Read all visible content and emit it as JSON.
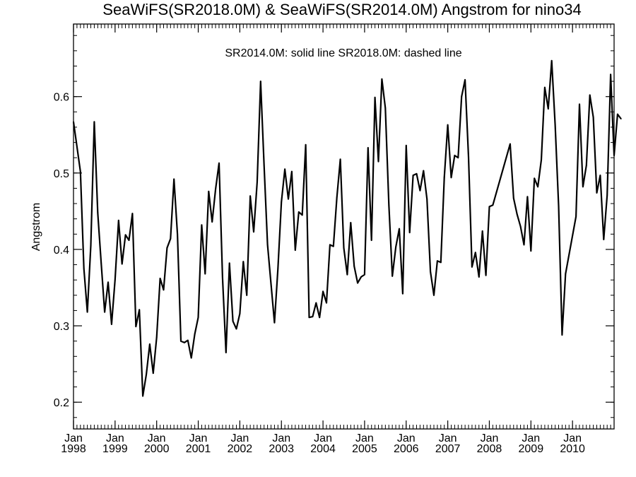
{
  "chart_data": {
    "type": "line",
    "title": "SeaWiFS(SR2018.0M) & SeaWiFS(SR2014.0M)  Angstrom for nino34",
    "annotation": "SR2014.0M: solid line   SR2018.0M: dashed line",
    "ylabel": "Angstrom",
    "xlabel": "",
    "xlim": [
      "1998-01",
      "2011-01"
    ],
    "ylim": [
      0.165,
      0.695
    ],
    "yticks": [
      {
        "value": 0.2,
        "label": "0.2"
      },
      {
        "value": 0.3,
        "label": "0.3"
      },
      {
        "value": 0.4,
        "label": "0.4"
      },
      {
        "value": 0.5,
        "label": "0.5"
      },
      {
        "value": 0.6,
        "label": "0.6"
      }
    ],
    "xticks": [
      {
        "date": "1998-01",
        "month": "Jan",
        "year": "1998"
      },
      {
        "date": "1999-01",
        "month": "Jan",
        "year": "1999"
      },
      {
        "date": "2000-01",
        "month": "Jan",
        "year": "2000"
      },
      {
        "date": "2001-01",
        "month": "Jan",
        "year": "2001"
      },
      {
        "date": "2002-01",
        "month": "Jan",
        "year": "2002"
      },
      {
        "date": "2003-01",
        "month": "Jan",
        "year": "2003"
      },
      {
        "date": "2004-01",
        "month": "Jan",
        "year": "2004"
      },
      {
        "date": "2005-01",
        "month": "Jan",
        "year": "2005"
      },
      {
        "date": "2006-01",
        "month": "Jan",
        "year": "2006"
      },
      {
        "date": "2007-01",
        "month": "Jan",
        "year": "2007"
      },
      {
        "date": "2008-01",
        "month": "Jan",
        "year": "2008"
      },
      {
        "date": "2009-01",
        "month": "Jan",
        "year": "2009"
      },
      {
        "date": "2010-01",
        "month": "Jan",
        "year": "2010"
      }
    ],
    "grid": false,
    "series": [
      {
        "line_style": "solid",
        "color": "#000000",
        "points": [
          [
            "1998-01",
            0.567
          ],
          [
            "1998-03",
            0.502
          ],
          [
            "1998-04",
            0.375
          ],
          [
            "1998-05",
            0.318
          ],
          [
            "1998-06",
            0.405
          ],
          [
            "1998-07",
            0.567
          ],
          [
            "1998-08",
            0.448
          ],
          [
            "1998-09",
            0.382
          ],
          [
            "1998-10",
            0.318
          ],
          [
            "1998-11",
            0.357
          ],
          [
            "1998-12",
            0.302
          ],
          [
            "1999-01",
            0.36
          ],
          [
            "1999-02",
            0.438
          ],
          [
            "1999-03",
            0.381
          ],
          [
            "1999-04",
            0.419
          ],
          [
            "1999-05",
            0.412
          ],
          [
            "1999-06",
            0.447
          ],
          [
            "1999-07",
            0.299
          ],
          [
            "1999-08",
            0.321
          ],
          [
            "1999-09",
            0.208
          ],
          [
            "1999-10",
            0.236
          ],
          [
            "1999-11",
            0.276
          ],
          [
            "1999-12",
            0.238
          ],
          [
            "2000-01",
            0.285
          ],
          [
            "2000-02",
            0.362
          ],
          [
            "2000-03",
            0.347
          ],
          [
            "2000-04",
            0.402
          ],
          [
            "2000-05",
            0.414
          ],
          [
            "2000-06",
            0.492
          ],
          [
            "2000-07",
            0.42
          ],
          [
            "2000-08",
            0.28
          ],
          [
            "2000-09",
            0.278
          ],
          [
            "2000-10",
            0.281
          ],
          [
            "2000-11",
            0.258
          ],
          [
            "2000-12",
            0.289
          ],
          [
            "2001-01",
            0.311
          ],
          [
            "2001-02",
            0.432
          ],
          [
            "2001-03",
            0.368
          ],
          [
            "2001-04",
            0.476
          ],
          [
            "2001-05",
            0.436
          ],
          [
            "2001-06",
            0.479
          ],
          [
            "2001-07",
            0.513
          ],
          [
            "2001-08",
            0.363
          ],
          [
            "2001-09",
            0.265
          ],
          [
            "2001-10",
            0.382
          ],
          [
            "2001-11",
            0.306
          ],
          [
            "2001-12",
            0.296
          ],
          [
            "2002-01",
            0.316
          ],
          [
            "2002-02",
            0.384
          ],
          [
            "2002-03",
            0.34
          ],
          [
            "2002-04",
            0.47
          ],
          [
            "2002-05",
            0.423
          ],
          [
            "2002-06",
            0.488
          ],
          [
            "2002-07",
            0.62
          ],
          [
            "2002-08",
            0.51
          ],
          [
            "2002-09",
            0.406
          ],
          [
            "2002-10",
            0.355
          ],
          [
            "2002-11",
            0.304
          ],
          [
            "2002-12",
            0.375
          ],
          [
            "2003-01",
            0.462
          ],
          [
            "2003-02",
            0.505
          ],
          [
            "2003-03",
            0.466
          ],
          [
            "2003-04",
            0.502
          ],
          [
            "2003-05",
            0.399
          ],
          [
            "2003-06",
            0.449
          ],
          [
            "2003-07",
            0.445
          ],
          [
            "2003-08",
            0.537
          ],
          [
            "2003-09",
            0.311
          ],
          [
            "2003-10",
            0.312
          ],
          [
            "2003-11",
            0.33
          ],
          [
            "2003-12",
            0.311
          ],
          [
            "2004-01",
            0.345
          ],
          [
            "2004-02",
            0.33
          ],
          [
            "2004-03",
            0.406
          ],
          [
            "2004-04",
            0.404
          ],
          [
            "2004-05",
            0.468
          ],
          [
            "2004-06",
            0.518
          ],
          [
            "2004-07",
            0.402
          ],
          [
            "2004-08",
            0.367
          ],
          [
            "2004-09",
            0.435
          ],
          [
            "2004-10",
            0.378
          ],
          [
            "2004-11",
            0.356
          ],
          [
            "2004-12",
            0.364
          ],
          [
            "2005-01",
            0.367
          ],
          [
            "2005-02",
            0.533
          ],
          [
            "2005-03",
            0.412
          ],
          [
            "2005-04",
            0.599
          ],
          [
            "2005-05",
            0.515
          ],
          [
            "2005-06",
            0.623
          ],
          [
            "2005-07",
            0.585
          ],
          [
            "2005-08",
            0.458
          ],
          [
            "2005-09",
            0.365
          ],
          [
            "2005-10",
            0.403
          ],
          [
            "2005-11",
            0.427
          ],
          [
            "2005-12",
            0.342
          ],
          [
            "2006-01",
            0.536
          ],
          [
            "2006-02",
            0.422
          ],
          [
            "2006-03",
            0.497
          ],
          [
            "2006-04",
            0.499
          ],
          [
            "2006-05",
            0.477
          ],
          [
            "2006-06",
            0.503
          ],
          [
            "2006-07",
            0.466
          ],
          [
            "2006-08",
            0.371
          ],
          [
            "2006-09",
            0.34
          ],
          [
            "2006-10",
            0.385
          ],
          [
            "2006-11",
            0.383
          ],
          [
            "2006-12",
            0.494
          ],
          [
            "2007-01",
            0.563
          ],
          [
            "2007-02",
            0.494
          ],
          [
            "2007-03",
            0.523
          ],
          [
            "2007-04",
            0.52
          ],
          [
            "2007-05",
            0.6
          ],
          [
            "2007-06",
            0.622
          ],
          [
            "2007-07",
            0.521
          ],
          [
            "2007-08",
            0.377
          ],
          [
            "2007-09",
            0.396
          ],
          [
            "2007-10",
            0.364
          ],
          [
            "2007-11",
            0.424
          ],
          [
            "2007-12",
            0.366
          ],
          [
            "2008-01",
            0.456
          ],
          [
            "2008-02",
            0.458
          ],
          [
            "2008-07",
            0.538
          ],
          [
            "2008-08",
            0.467
          ],
          [
            "2008-09",
            0.446
          ],
          [
            "2008-10",
            0.43
          ],
          [
            "2008-11",
            0.406
          ],
          [
            "2008-12",
            0.469
          ],
          [
            "2009-01",
            0.398
          ],
          [
            "2009-02",
            0.493
          ],
          [
            "2009-03",
            0.482
          ],
          [
            "2009-04",
            0.517
          ],
          [
            "2009-05",
            0.612
          ],
          [
            "2009-06",
            0.584
          ],
          [
            "2009-07",
            0.647
          ],
          [
            "2009-08",
            0.563
          ],
          [
            "2009-09",
            0.457
          ],
          [
            "2009-10",
            0.288
          ],
          [
            "2009-11",
            0.368
          ],
          [
            "2010-02",
            0.443
          ],
          [
            "2010-03",
            0.59
          ],
          [
            "2010-04",
            0.482
          ],
          [
            "2010-05",
            0.51
          ],
          [
            "2010-06",
            0.602
          ],
          [
            "2010-07",
            0.573
          ],
          [
            "2010-08",
            0.474
          ],
          [
            "2010-09",
            0.497
          ],
          [
            "2010-10",
            0.413
          ],
          [
            "2010-11",
            0.471
          ],
          [
            "2010-12",
            0.629
          ],
          [
            "2011-01",
            0.523
          ],
          [
            "2011-02",
            0.577
          ],
          [
            "2011-03",
            0.571
          ]
        ]
      }
    ]
  }
}
